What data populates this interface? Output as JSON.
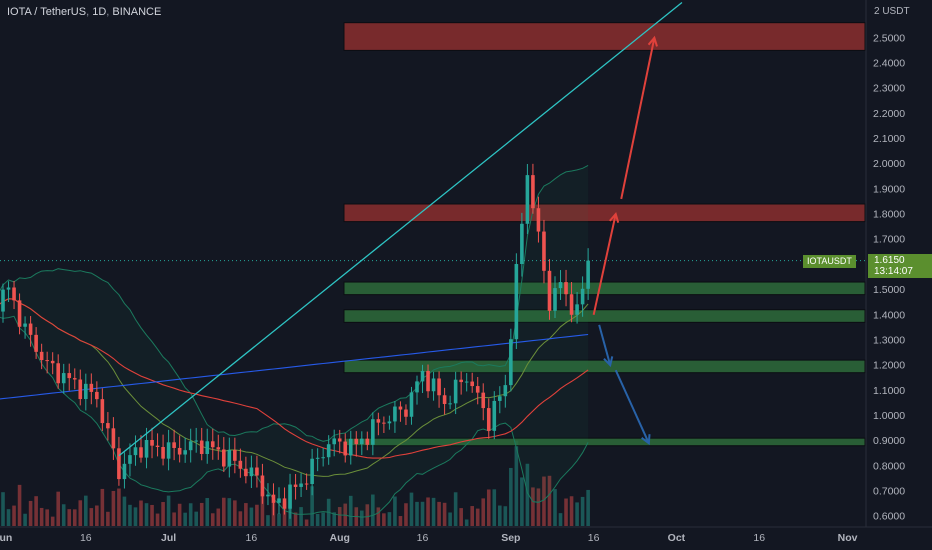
{
  "header": {
    "symbol": "IOTA / TetherUS",
    "interval": "1D",
    "exchange": "BINANCE",
    "separator": ","
  },
  "price_scale": {
    "currency_label": "2 USDT",
    "current_symbol": "IOTAUSDT",
    "current_price": "1.6150",
    "countdown": "13:14:07"
  },
  "colors": {
    "background": "#131722",
    "up": "#26a69a",
    "down": "#ef5350",
    "trendline": "#2ec4c4",
    "resistance_zone": "#8b2e2e",
    "support_zone": "#2e6b3a",
    "bb_band": "#1b7a5e",
    "ma_red": "#e0413b",
    "ma_blue": "#2962ff",
    "arrow_up": "#e0413b",
    "arrow_down": "#2862a8"
  },
  "chart_data": {
    "type": "candlestick",
    "title": "IOTA / TetherUS, 1D, BINANCE",
    "ylabel": "USDT",
    "ylim": [
      0.57,
      2.64
    ],
    "y_ticks": [
      "0.6000",
      "0.7000",
      "0.8000",
      "0.9000",
      "1.0000",
      "1.1000",
      "1.2000",
      "1.3000",
      "1.4000",
      "1.5000",
      "1.6000",
      "1.7000",
      "1.8000",
      "1.9000",
      "2.0000",
      "2.1000",
      "2.2000",
      "2.3000",
      "2.4000",
      "2.5000"
    ],
    "x_ticks": [
      {
        "label": "Jun",
        "date": "2021-06-01"
      },
      {
        "label": "16",
        "date": "2021-06-16"
      },
      {
        "label": "Jul",
        "date": "2021-07-01"
      },
      {
        "label": "16",
        "date": "2021-07-16"
      },
      {
        "label": "Aug",
        "date": "2021-08-01"
      },
      {
        "label": "16",
        "date": "2021-08-16"
      },
      {
        "label": "Sep",
        "date": "2021-09-01"
      },
      {
        "label": "16",
        "date": "2021-09-16"
      },
      {
        "label": "Oct",
        "date": "2021-10-01"
      },
      {
        "label": "16",
        "date": "2021-10-16"
      },
      {
        "label": "Nov",
        "date": "2021-11-01"
      }
    ],
    "close_key_points": [
      {
        "date": "2021-05-29",
        "close": 1.42
      },
      {
        "date": "2021-06-02",
        "close": 1.5
      },
      {
        "date": "2021-06-05",
        "close": 1.34
      },
      {
        "date": "2021-06-09",
        "close": 1.2
      },
      {
        "date": "2021-06-13",
        "close": 1.14
      },
      {
        "date": "2021-06-18",
        "close": 1.07
      },
      {
        "date": "2021-06-22",
        "close": 0.78
      },
      {
        "date": "2021-06-26",
        "close": 0.88
      },
      {
        "date": "2021-07-02",
        "close": 0.86
      },
      {
        "date": "2021-07-07",
        "close": 0.89
      },
      {
        "date": "2021-07-12",
        "close": 0.83
      },
      {
        "date": "2021-07-17",
        "close": 0.75
      },
      {
        "date": "2021-07-20",
        "close": 0.64
      },
      {
        "date": "2021-07-25",
        "close": 0.73
      },
      {
        "date": "2021-07-30",
        "close": 0.89
      },
      {
        "date": "2021-08-04",
        "close": 0.88
      },
      {
        "date": "2021-08-08",
        "close": 0.97
      },
      {
        "date": "2021-08-13",
        "close": 1.03
      },
      {
        "date": "2021-08-16",
        "close": 1.17
      },
      {
        "date": "2021-08-20",
        "close": 1.05
      },
      {
        "date": "2021-08-24",
        "close": 1.16
      },
      {
        "date": "2021-08-28",
        "close": 0.98
      },
      {
        "date": "2021-08-31",
        "close": 1.12
      },
      {
        "date": "2021-09-02",
        "close": 1.56
      },
      {
        "date": "2021-09-04",
        "close": 1.97
      },
      {
        "date": "2021-09-06",
        "close": 1.7
      },
      {
        "date": "2021-09-08",
        "close": 1.45
      },
      {
        "date": "2021-09-10",
        "close": 1.52
      },
      {
        "date": "2021-09-13",
        "close": 1.4
      },
      {
        "date": "2021-09-15",
        "close": 1.615
      }
    ],
    "zones": [
      {
        "type": "resistance",
        "low": 2.45,
        "high": 2.56
      },
      {
        "type": "resistance",
        "low": 1.77,
        "high": 1.84
      },
      {
        "type": "support",
        "low": 1.48,
        "high": 1.53
      },
      {
        "type": "support",
        "low": 1.37,
        "high": 1.42
      },
      {
        "type": "support",
        "low": 1.17,
        "high": 1.22
      },
      {
        "type": "support",
        "low": 0.88,
        "high": 0.91
      }
    ],
    "trendline": [
      {
        "date": "2021-06-22",
        "value": 0.84
      },
      {
        "date": "2021-10-02",
        "value": 2.64
      }
    ],
    "projection_arrows": [
      {
        "direction": "up",
        "from": {
          "date": "2021-09-16",
          "value": 1.4
        },
        "to": {
          "date": "2021-09-20",
          "value": 1.8
        }
      },
      {
        "direction": "up",
        "from": {
          "date": "2021-09-21",
          "value": 1.86
        },
        "to": {
          "date": "2021-09-27",
          "value": 2.5
        }
      },
      {
        "direction": "down",
        "from": {
          "date": "2021-09-17",
          "value": 1.36
        },
        "to": {
          "date": "2021-09-19",
          "value": 1.2
        }
      },
      {
        "direction": "down",
        "from": {
          "date": "2021-09-20",
          "value": 1.18
        },
        "to": {
          "date": "2021-09-26",
          "value": 0.89
        }
      }
    ],
    "indicators": [
      "Bollinger Bands",
      "Moving Average",
      "Moving Average",
      "Volume"
    ]
  }
}
